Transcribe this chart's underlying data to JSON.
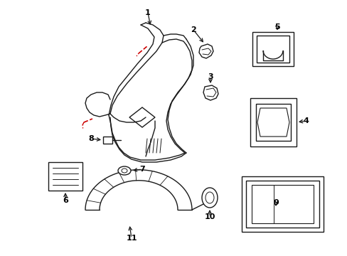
{
  "background_color": "#ffffff",
  "line_color": "#1a1a1a",
  "red_color": "#cc0000",
  "label_color": "#000000",
  "figsize": [
    4.89,
    3.6
  ],
  "dpi": 100
}
